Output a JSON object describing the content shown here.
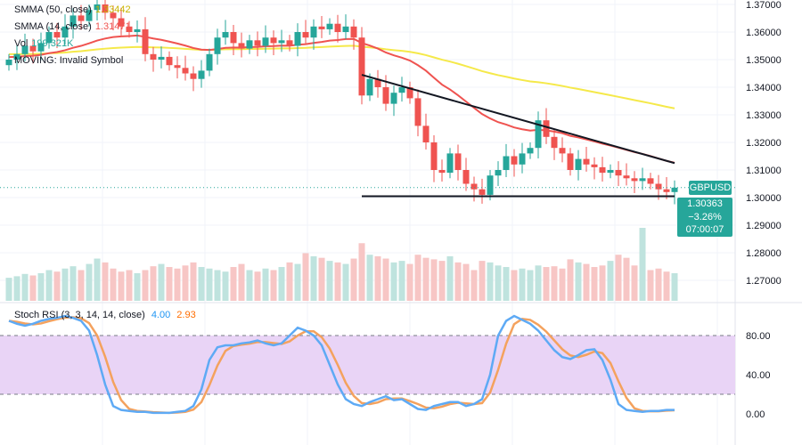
{
  "chart_data": {
    "type": "candlestick",
    "symbol": "GBPUSD",
    "price_ticks": [
      "1.37000",
      "1.36000",
      "1.35000",
      "1.34000",
      "1.33000",
      "1.32000",
      "1.31000",
      "1.30000",
      "1.29000",
      "1.28000",
      "1.27000"
    ],
    "price_tick_values": [
      1.37,
      1.36,
      1.35,
      1.34,
      1.33,
      1.32,
      1.31,
      1.3,
      1.29,
      1.28,
      1.27
    ],
    "ylim": [
      1.266,
      1.3715
    ],
    "closes": [
      1.35,
      1.352,
      1.355,
      1.353,
      1.356,
      1.36,
      1.358,
      1.362,
      1.366,
      1.364,
      1.368,
      1.37,
      1.367,
      1.365,
      1.362,
      1.36,
      1.361,
      1.352,
      1.35,
      1.351,
      1.348,
      1.347,
      1.345,
      1.343,
      1.346,
      1.352,
      1.358,
      1.36,
      1.356,
      1.354,
      1.357,
      1.355,
      1.358,
      1.356,
      1.357,
      1.355,
      1.36,
      1.358,
      1.362,
      1.361,
      1.363,
      1.36,
      1.362,
      1.358,
      1.337,
      1.343,
      1.34,
      1.334,
      1.338,
      1.34,
      1.336,
      1.326,
      1.32,
      1.31,
      1.309,
      1.316,
      1.31,
      1.305,
      1.303,
      1.301,
      1.308,
      1.31,
      1.315,
      1.312,
      1.316,
      1.318,
      1.328,
      1.322,
      1.318,
      1.316,
      1.31,
      1.314,
      1.312,
      1.311,
      1.309,
      1.31,
      1.308,
      1.307,
      1.306,
      1.307,
      1.305,
      1.303,
      1.302,
      1.3036
    ],
    "volume": [
      30,
      32,
      35,
      33,
      36,
      40,
      38,
      42,
      45,
      40,
      48,
      55,
      50,
      42,
      38,
      40,
      36,
      40,
      45,
      48,
      44,
      42,
      46,
      50,
      44,
      42,
      40,
      38,
      44,
      48,
      40,
      38,
      42,
      40,
      44,
      50,
      48,
      62,
      58,
      56,
      52,
      50,
      48,
      55,
      75,
      60,
      58,
      55,
      50,
      52,
      48,
      60,
      56,
      54,
      52,
      58,
      50,
      48,
      40,
      52,
      50,
      46,
      44,
      40,
      42,
      40,
      46,
      44,
      45,
      42,
      54,
      50,
      48,
      44,
      46,
      52,
      60,
      56,
      46,
      95,
      40,
      42,
      38,
      36
    ],
    "sma50_seed": 1.352,
    "sma14_seed": 1.351,
    "trendline_resistance": {
      "from": [
        44,
        1.3445
      ],
      "to": [
        83,
        1.3125
      ]
    },
    "trendline_support": {
      "from": [
        44,
        1.3005
      ],
      "to": [
        83,
        1.3005
      ]
    },
    "last_price": "1.30363",
    "change": "−3.26%",
    "countdown": "07:00:07",
    "stoch": {
      "title": "Stoch RSI (3, 3, 14, 14, close)",
      "k_value": "4.00",
      "d_value": "2.93",
      "k": [
        95,
        92,
        90,
        92,
        95,
        97,
        98,
        100,
        98,
        95,
        85,
        60,
        30,
        8,
        4,
        3,
        2,
        2,
        1,
        1,
        1,
        2,
        3,
        8,
        25,
        55,
        68,
        70,
        70,
        72,
        73,
        75,
        72,
        70,
        72,
        80,
        88,
        85,
        80,
        70,
        50,
        30,
        15,
        10,
        8,
        12,
        15,
        18,
        14,
        15,
        10,
        5,
        4,
        8,
        10,
        12,
        12,
        8,
        10,
        15,
        40,
        80,
        95,
        100,
        96,
        92,
        85,
        75,
        65,
        58,
        56,
        60,
        65,
        66,
        55,
        35,
        10,
        4,
        3,
        2,
        3,
        3,
        4,
        4
      ],
      "ticks": [
        "80.00",
        "40.00",
        "0.00"
      ],
      "tick_values": [
        80,
        40,
        0
      ],
      "bands": [
        80,
        20
      ]
    }
  },
  "legend": {
    "smma50_label": "SMMA (50, close)",
    "smma50_value": "1.33442",
    "smma14_label": "SMMA (14, close)",
    "smma14_value": "1.31471",
    "vol_label": "Vol",
    "vol_value": "199.321K",
    "moving_label": "MOVING: Invalid Symbol"
  },
  "colors": {
    "up": "#26a69a",
    "down": "#ef5350",
    "smma50": "#f5e94a",
    "smma14": "#ef5350",
    "k": "#5eaaf5",
    "d": "#f4a25e",
    "band": "#e9d4f6"
  }
}
